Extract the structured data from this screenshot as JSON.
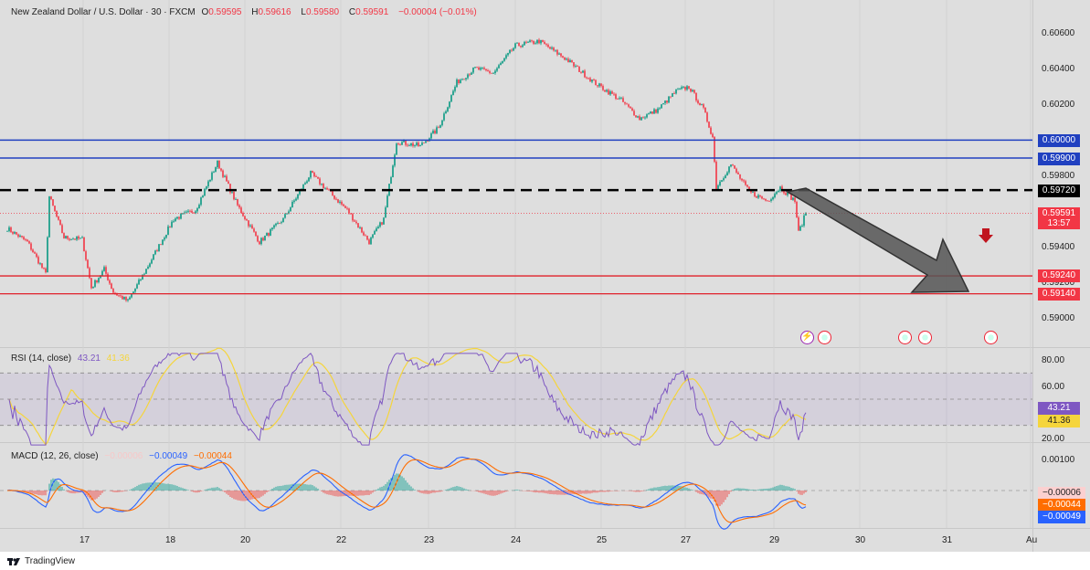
{
  "header": {
    "symbol": "New Zealand Dollar / U.S. Dollar · 30 · FXCM",
    "o_label": "O",
    "o": "0.59595",
    "h_label": "H",
    "h": "0.59616",
    "l_label": "L",
    "l": "0.59580",
    "c_label": "C",
    "c": "0.59591",
    "change": "−0.00004 (−0.01%)"
  },
  "price_axis": {
    "labels": [
      "0.60600",
      "0.60400",
      "0.60200",
      "0.59800",
      "0.59400",
      "0.59200",
      "0.59000"
    ],
    "tags": {
      "blue1": "0.60000",
      "blue2": "0.59900",
      "black": "0.59720",
      "current": "0.59591",
      "countdown": "13:57",
      "red1": "0.59240",
      "red2": "0.59140"
    }
  },
  "levels": {
    "blue": [
      0.6,
      0.599
    ],
    "dashed": 0.5972,
    "red": [
      0.5924,
      0.5914
    ],
    "current": 0.59591
  },
  "colors": {
    "up": "#089981",
    "down": "#f23645",
    "blue": "#2040c0",
    "rsi": "#7e57c2",
    "rsi_ma": "#f5d53c",
    "macd": "#2962ff",
    "signal": "#ff6d00"
  },
  "rsi": {
    "label": "RSI (14, close)",
    "value": "43.21",
    "ma": "41.36",
    "axis": [
      "80.00",
      "60.00",
      "20.00"
    ]
  },
  "macd": {
    "label": "MACD (12, 26, close)",
    "hist": "−0.00006",
    "macd": "−0.00049",
    "signal": "−0.00044",
    "axis": [
      "0.00100"
    ],
    "tags": [
      "−0.00006",
      "−0.00044",
      "−0.00049"
    ]
  },
  "time_axis": [
    "17",
    "18",
    "20",
    "22",
    "23",
    "24",
    "25",
    "27",
    "29",
    "30",
    "31",
    "Au"
  ],
  "footer": {
    "brand": "TradingView"
  },
  "chart_data": {
    "type": "candlestick",
    "interval": "30",
    "price_range": [
      0.589,
      0.607
    ],
    "waypoints": [
      [
        0,
        0.59506
      ],
      [
        11,
        0.5943
      ],
      [
        21,
        0.59251
      ],
      [
        23,
        0.59685
      ],
      [
        31,
        0.59455
      ],
      [
        41,
        0.59445
      ],
      [
        46,
        0.59174
      ],
      [
        53,
        0.59277
      ],
      [
        58,
        0.59149
      ],
      [
        66,
        0.59098
      ],
      [
        76,
        0.59277
      ],
      [
        91,
        0.59558
      ],
      [
        103,
        0.59609
      ],
      [
        115,
        0.59874
      ],
      [
        126,
        0.59634
      ],
      [
        138,
        0.5943
      ],
      [
        151,
        0.59558
      ],
      [
        166,
        0.59813
      ],
      [
        176,
        0.59711
      ],
      [
        186,
        0.59609
      ],
      [
        198,
        0.5943
      ],
      [
        206,
        0.59558
      ],
      [
        213,
        0.59992
      ],
      [
        226,
        0.59967
      ],
      [
        236,
        0.60069
      ],
      [
        246,
        0.60324
      ],
      [
        256,
        0.60401
      ],
      [
        266,
        0.60375
      ],
      [
        278,
        0.60528
      ],
      [
        291,
        0.60554
      ],
      [
        306,
        0.60452
      ],
      [
        321,
        0.60324
      ],
      [
        336,
        0.60222
      ],
      [
        346,
        0.6012
      ],
      [
        356,
        0.60171
      ],
      [
        366,
        0.60273
      ],
      [
        373,
        0.60299
      ],
      [
        381,
        0.60171
      ],
      [
        386,
        0.60018
      ],
      [
        388,
        0.59736
      ],
      [
        396,
        0.59864
      ],
      [
        406,
        0.5971
      ],
      [
        416,
        0.5966
      ],
      [
        423,
        0.59736
      ],
      [
        431,
        0.5966
      ],
      [
        433,
        0.59481
      ],
      [
        437,
        0.59591
      ]
    ]
  }
}
